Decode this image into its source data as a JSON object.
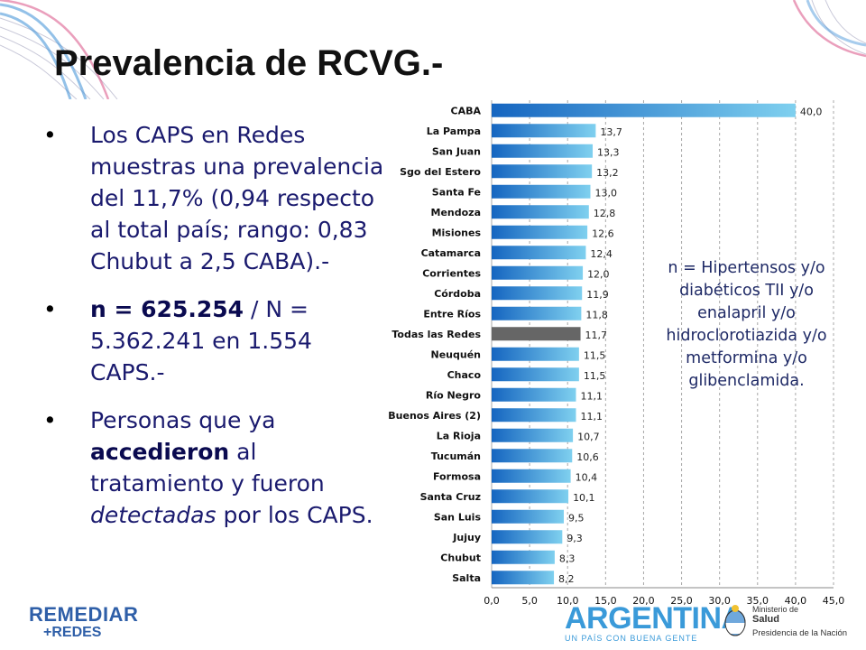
{
  "slide": {
    "title": "Prevalencia de RCVG.-",
    "bullet1": "Los CAPS en Redes muestras una prevalencia del 11,7% (0,94 respecto al total país; rango: 0,83 Chubut a 2,5 CABA).-",
    "bullet2_bold": "n = 625.254",
    "bullet2_rest": " / N = 5.362.241 en 1.554 CAPS.-",
    "bullet3_a": "Personas que ya ",
    "bullet3_bold": "accedieron",
    "bullet3_b": " al tratamiento y fueron ",
    "bullet3_italic": "detectadas",
    "bullet3_c": " por los CAPS.",
    "bullet_glyph": "•",
    "note": "n = Hipertensos y/o diabéticos TII y/o enalapril y/o hidroclorotiazida y/o metformina y/o glibenclamida."
  },
  "logos": {
    "remediar_line1": "REMEDIAR",
    "remediar_line2": "+REDES",
    "argentina": "ARGENTINA",
    "argentina_tagline": "UN PAÍS CON BUENA GENTE",
    "ministerio": "Ministerio de",
    "salud": "Salud",
    "presidencia": "Presidencia de la Nación"
  },
  "chart_data": {
    "type": "bar",
    "orientation": "horizontal",
    "categories": [
      "CABA",
      "La Pampa",
      "San Juan",
      "Sgo del Estero",
      "Santa Fe",
      "Mendoza",
      "Misiones",
      "Catamarca",
      "Corrientes",
      "Córdoba",
      "Entre Ríos",
      "Todas las Redes",
      "Neuquén",
      "Chaco",
      "Río Negro",
      "Buenos Aires (2)",
      "La Rioja",
      "Tucumán",
      "Formosa",
      "Santa Cruz",
      "San Luis",
      "Jujuy",
      "Chubut",
      "Salta"
    ],
    "values": [
      40.0,
      13.7,
      13.3,
      13.2,
      13.0,
      12.8,
      12.6,
      12.4,
      12.0,
      11.9,
      11.8,
      11.7,
      11.5,
      11.5,
      11.1,
      11.1,
      10.7,
      10.6,
      10.4,
      10.1,
      9.5,
      9.3,
      8.3,
      8.2
    ],
    "value_labels": [
      "40,0",
      "13,7",
      "13,3",
      "13,2",
      "13,0",
      "12,8",
      "12,6",
      "12,4",
      "12,0",
      "11,9",
      "11,8",
      "11,7",
      "11,5",
      "11,5",
      "11,1",
      "11,1",
      "10,7",
      "10,6",
      "10,4",
      "10,1",
      "9,5",
      "9,3",
      "8,3",
      "8,2"
    ],
    "xticks": [
      0,
      5,
      10,
      15,
      20,
      25,
      30,
      35,
      40,
      45
    ],
    "xtick_labels": [
      "0,0",
      "5,0",
      "10,0",
      "15,0",
      "20,0",
      "25,0",
      "30,0",
      "35,0",
      "40,0",
      "45,0"
    ],
    "xlim": [
      0,
      45
    ],
    "highlight_category": "Todas las Redes",
    "grid": "vertical dashed",
    "colors": {
      "bar_dark": "#1565c0",
      "bar_light": "#7fd0ef",
      "highlight": "#666666"
    }
  }
}
